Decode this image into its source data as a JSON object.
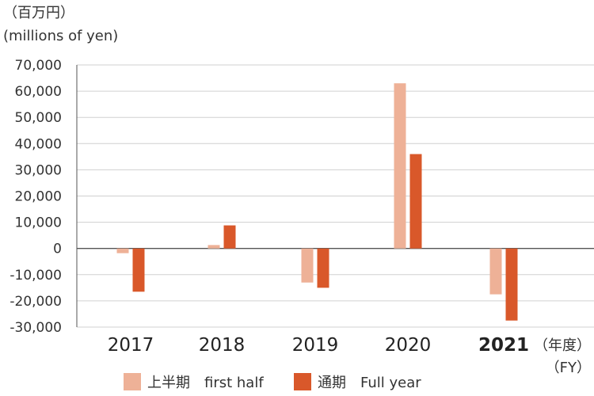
{
  "chart_data": {
    "type": "bar",
    "unit_label_ja": "（百万円）",
    "unit_label_en": "(millions of yen)",
    "x_unit_ja": "（年度）",
    "x_unit_en": "（FY）",
    "categories": [
      "2017",
      "2018",
      "2019",
      "2020",
      "2021"
    ],
    "highlight_category": "2021",
    "yticks": [
      "70,000",
      "60,000",
      "50,000",
      "40,000",
      "30,000",
      "20,000",
      "10,000",
      "0",
      "-10,000",
      "-20,000",
      "-30,000"
    ],
    "ylim": [
      -30000,
      70000
    ],
    "grid": true,
    "legend_position": "bottom",
    "series": [
      {
        "name": "上半期　first half",
        "color": "#eeb197",
        "values": [
          -1800,
          1300,
          -13000,
          63000,
          -17500
        ]
      },
      {
        "name": "通期　Full year",
        "color": "#d9582a",
        "values": [
          -16500,
          8800,
          -15000,
          36000,
          -27500
        ]
      }
    ]
  }
}
